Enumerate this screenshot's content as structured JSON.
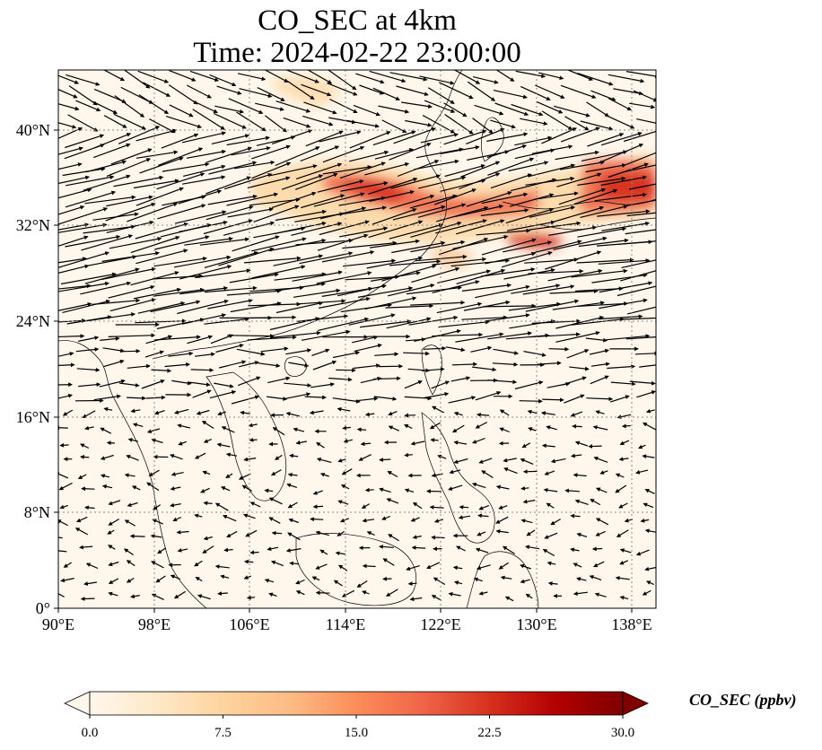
{
  "title": {
    "line1": "CO_SEC at 4km",
    "line2": "Time: 2024-02-22 23:00:00"
  },
  "map": {
    "lon_range": [
      90,
      140
    ],
    "lat_range": [
      0,
      45
    ],
    "x_ticks": [
      "90°E",
      "98°E",
      "106°E",
      "114°E",
      "122°E",
      "130°E",
      "138°E"
    ],
    "y_ticks": [
      "0°",
      "8°N",
      "16°N",
      "24°N",
      "32°N",
      "40°N"
    ],
    "gridlines": "dotted",
    "field_colormap": "OrRd",
    "vector_field": "wind arrows"
  },
  "colorbar": {
    "label": "CO_SEC (ppbv)",
    "range": [
      0.0,
      30.0
    ],
    "ticks": [
      "0.0",
      "7.5",
      "15.0",
      "22.5",
      "30.0"
    ],
    "colors": [
      "#fff7ec",
      "#fee8c8",
      "#fdd49e",
      "#fdbb84",
      "#fc8d59",
      "#ef6548",
      "#d7301f",
      "#b30000",
      "#7f0000"
    ],
    "extend": "both"
  }
}
